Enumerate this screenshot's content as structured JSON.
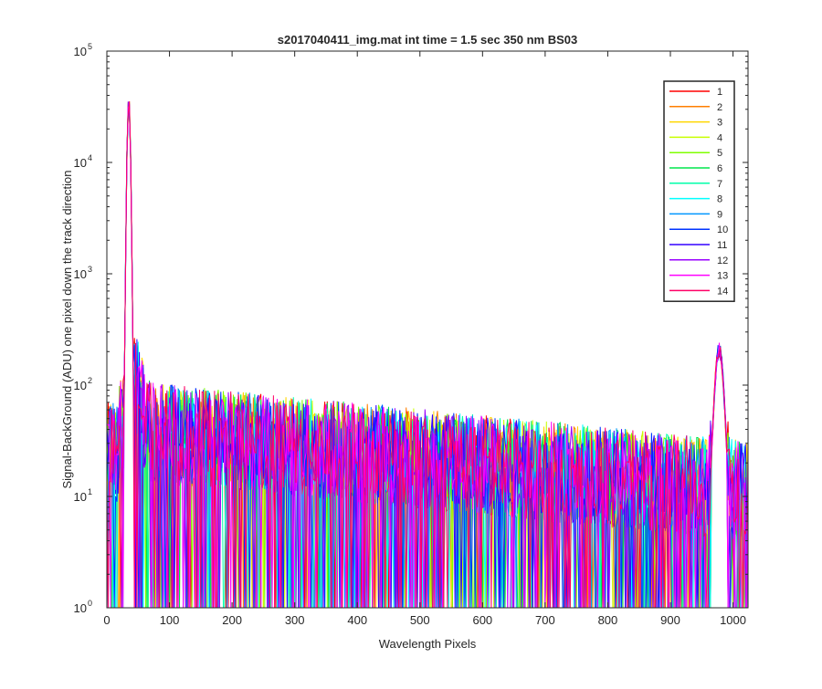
{
  "chart_data": {
    "type": "line",
    "title": "s2017040411_img.mat int time = 1.5 sec  350 nm BS03",
    "xlabel": "Wavelength Pixels",
    "ylabel": "Signal-BackGround (ADU) one pixel down the track direction",
    "xlim": [
      0,
      1024
    ],
    "ylim": [
      1,
      100000
    ],
    "yscale": "log",
    "grid": false,
    "legend_position": "top-right",
    "x_ticks": [
      0,
      100,
      200,
      300,
      400,
      500,
      600,
      700,
      800,
      900,
      1000
    ],
    "x_tick_labels": [
      "0",
      "100",
      "200",
      "300",
      "400",
      "500",
      "600",
      "700",
      "800",
      "900",
      "1000"
    ],
    "y_ticks": [
      1,
      10,
      100,
      1000,
      10000,
      100000
    ],
    "y_tick_bases": [
      "10",
      "10",
      "10",
      "10",
      "10",
      "10"
    ],
    "y_tick_exponents": [
      "0",
      "1",
      "2",
      "3",
      "4",
      "5"
    ],
    "features": {
      "peak1": {
        "x": 35,
        "y": 35000
      },
      "peak2": {
        "x": 978,
        "y": 200
      },
      "noise_start_level": 40,
      "noise_end_level": 12,
      "floor": 1
    },
    "series": [
      {
        "name": "1",
        "color": "#ff0000"
      },
      {
        "name": "2",
        "color": "#ff7f00"
      },
      {
        "name": "3",
        "color": "#ffd700"
      },
      {
        "name": "4",
        "color": "#c8ff00"
      },
      {
        "name": "5",
        "color": "#7fff00"
      },
      {
        "name": "6",
        "color": "#00e64d"
      },
      {
        "name": "7",
        "color": "#00ffaa"
      },
      {
        "name": "8",
        "color": "#00ffff"
      },
      {
        "name": "9",
        "color": "#0096ff"
      },
      {
        "name": "10",
        "color": "#0033ff"
      },
      {
        "name": "11",
        "color": "#3300ff"
      },
      {
        "name": "12",
        "color": "#9900ff"
      },
      {
        "name": "13",
        "color": "#ff00ff"
      },
      {
        "name": "14",
        "color": "#ff0066"
      }
    ]
  }
}
